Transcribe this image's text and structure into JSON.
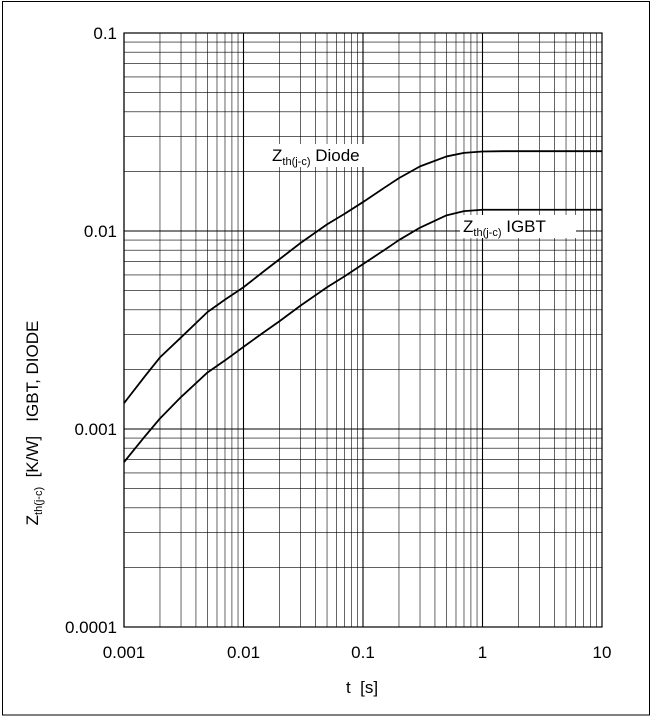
{
  "chart_data": {
    "type": "line",
    "x_scale": "log",
    "y_scale": "log",
    "xlim": [
      0.001,
      10
    ],
    "ylim": [
      0.0001,
      0.1
    ],
    "grid": true,
    "x_ticks": [
      "0.001",
      "0.01",
      "0.1",
      "1",
      "10"
    ],
    "y_ticks": [
      "0.0001",
      "0.001",
      "0.01",
      "0.1"
    ],
    "xlabel": "t  [s]",
    "ylabel": {
      "base": "Z",
      "sub": "th(j-c)",
      "rest": "  [K/W]   IGBT, DIODE"
    },
    "series": [
      {
        "name": {
          "base": "Z",
          "sub": "th(j-c)",
          "rest": " Diode"
        },
        "x": [
          0.001,
          0.0015,
          0.002,
          0.003,
          0.005,
          0.007,
          0.01,
          0.015,
          0.02,
          0.03,
          0.05,
          0.07,
          0.1,
          0.15,
          0.2,
          0.3,
          0.5,
          0.7,
          1,
          1.5,
          2,
          3,
          5,
          10
        ],
        "y": [
          0.00135,
          0.00185,
          0.0023,
          0.0029,
          0.0039,
          0.0045,
          0.0052,
          0.0063,
          0.0072,
          0.0087,
          0.0108,
          0.0122,
          0.014,
          0.0165,
          0.0185,
          0.0212,
          0.0238,
          0.0248,
          0.0252,
          0.0253,
          0.0253,
          0.0253,
          0.0253,
          0.0253
        ]
      },
      {
        "name": {
          "base": "Z",
          "sub": "th(j-c)",
          "rest": " IGBT"
        },
        "x": [
          0.001,
          0.0015,
          0.002,
          0.003,
          0.005,
          0.007,
          0.01,
          0.015,
          0.02,
          0.03,
          0.05,
          0.07,
          0.1,
          0.15,
          0.2,
          0.3,
          0.5,
          0.7,
          1,
          1.5,
          2,
          3,
          5,
          10
        ],
        "y": [
          0.00068,
          0.00092,
          0.00113,
          0.00145,
          0.00193,
          0.00222,
          0.0026,
          0.0031,
          0.0035,
          0.0042,
          0.0052,
          0.0059,
          0.0068,
          0.008,
          0.009,
          0.0104,
          0.012,
          0.0126,
          0.0128,
          0.0128,
          0.0128,
          0.0128,
          0.0128,
          0.0128
        ]
      }
    ]
  }
}
